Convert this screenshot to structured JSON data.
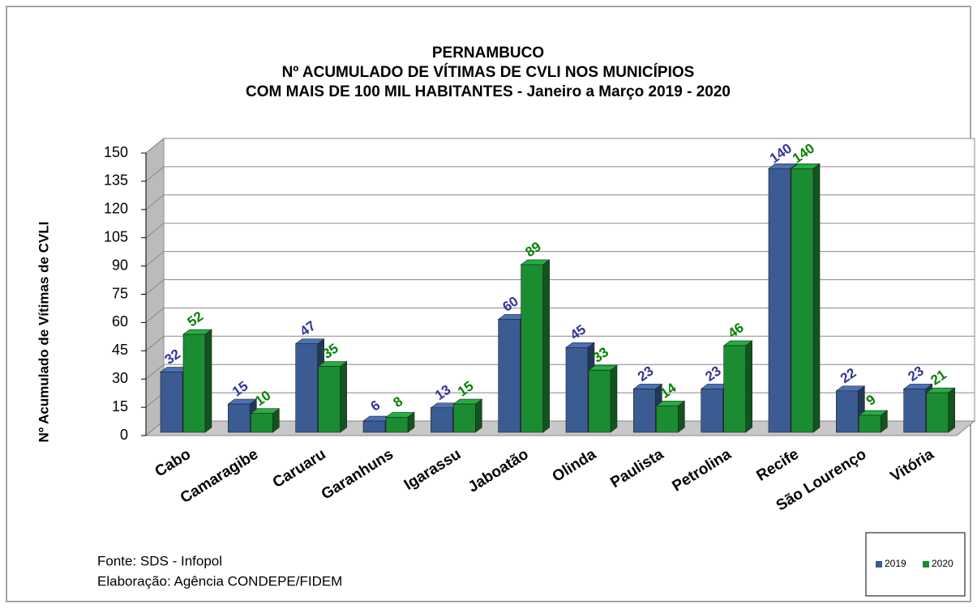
{
  "chart_data": {
    "type": "bar3d",
    "title": [
      "PERNAMBUCO",
      "Nº ACUMULADO  DE VÍTIMAS DE CVLI NOS MUNICÍPIOS",
      "COM  MAIS DE 100 MIL HABITANTES  - Janeiro a Março 2019 - 2020"
    ],
    "ylabel": "Nº Acumulado de Vítimas de CVLI",
    "categories": [
      "Cabo",
      "Camaragibe",
      "Caruaru",
      "Garanhuns",
      "Igarassu",
      "Jaboatão",
      "Olinda",
      "Paulista",
      "Petrolina",
      "Recife",
      "São Lourenço",
      "Vitória"
    ],
    "series": [
      {
        "name": "2019",
        "color": "#3b5b93",
        "label_color": "#333399",
        "values": [
          32,
          15,
          47,
          6,
          13,
          60,
          45,
          23,
          23,
          140,
          22,
          23
        ]
      },
      {
        "name": "2020",
        "color": "#1b8c32",
        "label_color": "#008000",
        "values": [
          52,
          10,
          35,
          8,
          15,
          89,
          33,
          14,
          46,
          140,
          9,
          21
        ]
      }
    ],
    "ylim": [
      0,
      150
    ],
    "yticks": [
      0,
      15,
      30,
      45,
      60,
      75,
      90,
      105,
      120,
      135,
      150
    ],
    "grid": true,
    "legend": "bottom-right",
    "notes": [
      "Fonte: SDS - Infopol",
      "Elaboração: Agência CONDEPE/FIDEM"
    ]
  }
}
